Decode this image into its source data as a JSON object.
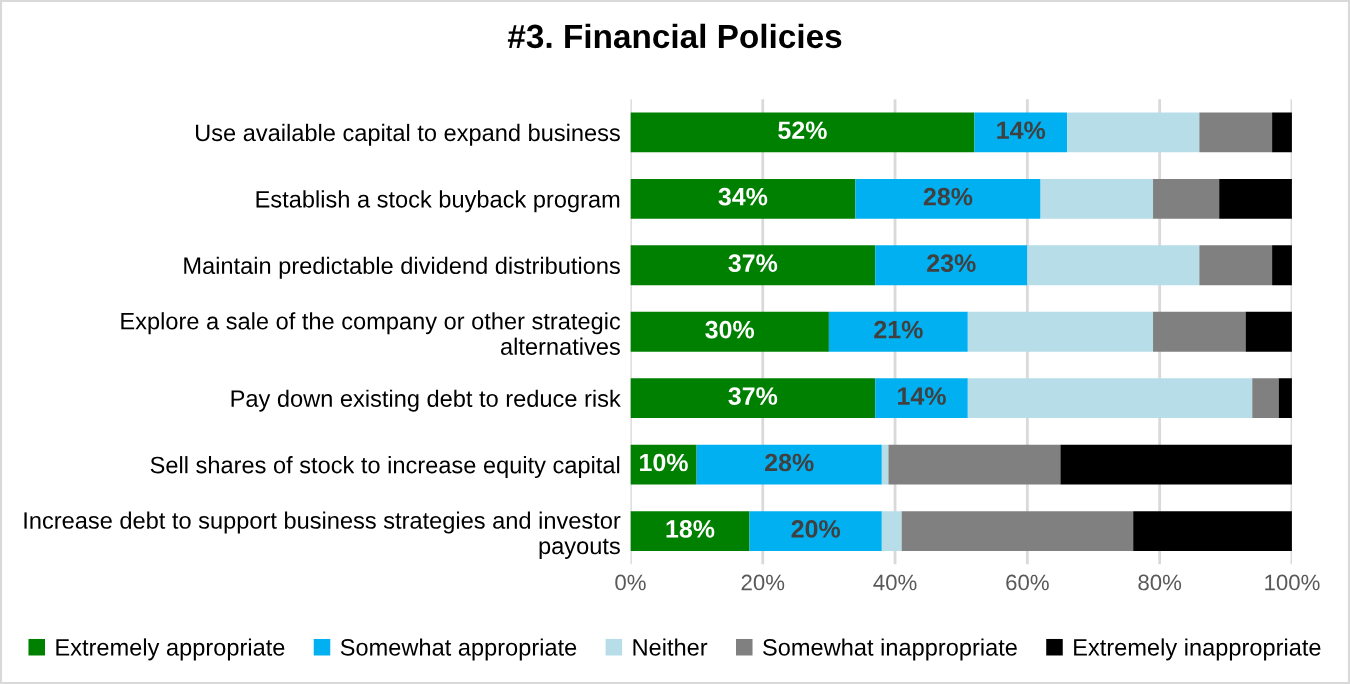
{
  "chart_data": {
    "type": "bar",
    "orientation": "horizontal",
    "stacked": true,
    "title": "#3. Financial Policies",
    "categories": [
      "Use available capital to expand business",
      "Establish a stock buyback program",
      "Maintain predictable dividend distributions",
      "Explore a sale of the company or other strategic alternatives",
      "Pay down existing debt to reduce risk",
      "Sell shares of stock to increase equity capital",
      "Increase debt to support business strategies and investor payouts"
    ],
    "series": [
      {
        "name": "Extremely appropriate",
        "color": "#008000",
        "values": [
          52,
          34,
          37,
          30,
          37,
          10,
          18
        ],
        "value_labels": [
          "52%",
          "34%",
          "37%",
          "30%",
          "37%",
          "10%",
          "18%"
        ]
      },
      {
        "name": "Somewhat appropriate",
        "color": "#00b0f0",
        "values": [
          14,
          28,
          23,
          21,
          14,
          28,
          20
        ],
        "value_labels": [
          "14%",
          "28%",
          "23%",
          "21%",
          "14%",
          "28%",
          "20%"
        ]
      },
      {
        "name": "Neither",
        "color": "#b7dee8",
        "values": [
          20,
          17,
          26,
          28,
          43,
          1,
          3
        ]
      },
      {
        "name": "Somewhat inappropriate",
        "color": "#808080",
        "values": [
          11,
          10,
          11,
          14,
          4,
          26,
          35
        ]
      },
      {
        "name": "Extremely inappropriate",
        "color": "#000000",
        "values": [
          3,
          11,
          3,
          7,
          2,
          35,
          24
        ]
      }
    ],
    "xlim": [
      0,
      100
    ],
    "xticks": [
      {
        "value": 0,
        "label": "0%"
      },
      {
        "value": 20,
        "label": "20%"
      },
      {
        "value": 40,
        "label": "40%"
      },
      {
        "value": 60,
        "label": "60%"
      },
      {
        "value": 80,
        "label": "80%"
      },
      {
        "value": 100,
        "label": "100%"
      }
    ],
    "grid": "x",
    "legend": "bottom"
  }
}
